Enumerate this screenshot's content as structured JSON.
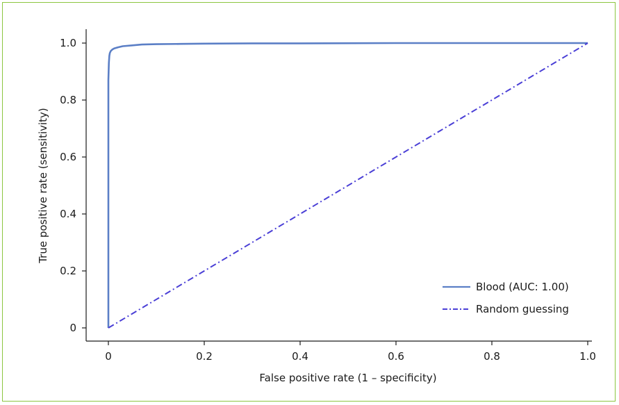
{
  "chart_data": {
    "type": "line",
    "title": "",
    "xlabel": "False positive rate (1 – specificity)",
    "ylabel": "True positive rate (sensitivity)",
    "xlim": [
      0,
      1
    ],
    "ylim": [
      0,
      1
    ],
    "xticks": [
      0,
      0.2,
      0.4,
      0.6,
      0.8,
      1.0
    ],
    "xtick_labels": [
      "0",
      "0.2",
      "0.4",
      "0.6",
      "0.8",
      "1.0"
    ],
    "yticks": [
      0,
      0.2,
      0.4,
      0.6,
      0.8,
      1.0
    ],
    "ytick_labels": [
      "0",
      "0.2",
      "0.4",
      "0.6",
      "0.8",
      "1.0"
    ],
    "grid": false,
    "legend_position": "bottom-right",
    "series": [
      {
        "name": "Blood (AUC: 1.00)",
        "style": "solid",
        "color": "#5b7fc6",
        "x": [
          0,
          0,
          0.001,
          0.002,
          0.003,
          0.005,
          0.008,
          0.012,
          0.02,
          0.03,
          0.05,
          0.07,
          0.1,
          0.15,
          0.2,
          0.3,
          0.4,
          0.6,
          0.8,
          1.0
        ],
        "y": [
          0,
          0.87,
          0.93,
          0.955,
          0.965,
          0.972,
          0.977,
          0.981,
          0.985,
          0.989,
          0.992,
          0.995,
          0.996,
          0.997,
          0.998,
          0.999,
          0.999,
          1.0,
          1.0,
          1.0
        ]
      },
      {
        "name": "Random guessing",
        "style": "dash-dot",
        "color": "#4a3fd6",
        "x": [
          0,
          1
        ],
        "y": [
          0,
          1
        ]
      }
    ]
  },
  "colors": {
    "frame_border": "#8cc63f",
    "axis": "#1a1a1a"
  }
}
